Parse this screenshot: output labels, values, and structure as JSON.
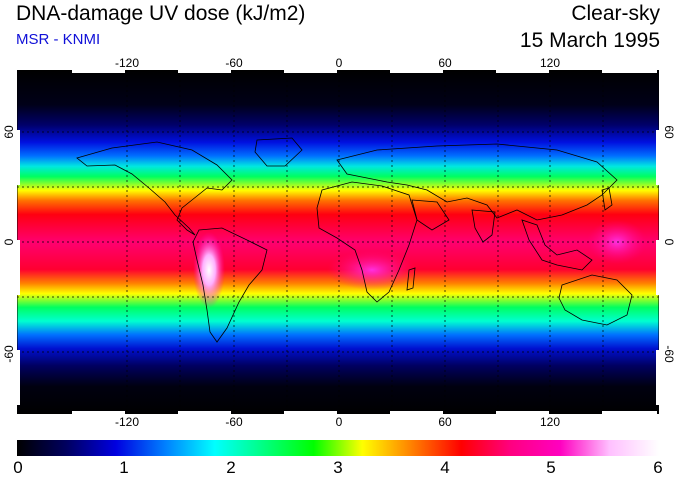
{
  "header": {
    "title": "DNA-damage UV dose (kJ/m2)",
    "source": "MSR - KNMI",
    "condition": "Clear-sky",
    "date": "15 March 1995"
  },
  "map": {
    "longitude_labels": [
      "-120",
      "-60",
      "0",
      "60",
      "120"
    ],
    "latitude_labels_left": [
      "60",
      "0",
      "-60"
    ],
    "latitude_labels_right": [
      "60",
      "0",
      "-60"
    ]
  },
  "colorbar": {
    "tick_labels": [
      "0",
      "1",
      "2",
      "3",
      "4",
      "5",
      "6"
    ],
    "min": 0,
    "max": 6,
    "colors": [
      "#000000",
      "#000060",
      "#0000e0",
      "#0080ff",
      "#00ffff",
      "#00ff80",
      "#00ff00",
      "#ffff00",
      "#ff8000",
      "#ff0000",
      "#ff0080",
      "#ff00c0",
      "#ffc0ff",
      "#ffffff"
    ]
  }
}
